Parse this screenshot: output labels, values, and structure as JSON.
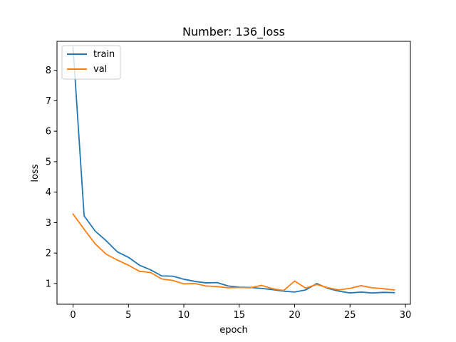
{
  "chart_data": {
    "type": "line",
    "title": "Number: 136_loss",
    "xlabel": "epoch",
    "ylabel": "loss",
    "xlim": [
      -1.45,
      30.45
    ],
    "ylim": [
      0.32,
      8.95
    ],
    "xticks": [
      0,
      5,
      10,
      15,
      20,
      25,
      30
    ],
    "yticks": [
      1,
      2,
      3,
      4,
      5,
      6,
      7,
      8
    ],
    "grid": false,
    "legend_position": "top-left",
    "x": [
      0,
      1,
      2,
      3,
      4,
      5,
      6,
      7,
      8,
      9,
      10,
      11,
      12,
      13,
      14,
      15,
      16,
      17,
      18,
      19,
      20,
      21,
      22,
      23,
      24,
      25,
      26,
      27,
      28,
      29
    ],
    "series": [
      {
        "name": "train",
        "color": "#1f77b4",
        "values": [
          8.75,
          3.22,
          2.72,
          2.4,
          2.04,
          1.86,
          1.6,
          1.45,
          1.25,
          1.24,
          1.14,
          1.07,
          1.02,
          1.03,
          0.92,
          0.88,
          0.87,
          0.84,
          0.8,
          0.75,
          0.72,
          0.79,
          1.0,
          0.84,
          0.75,
          0.69,
          0.72,
          0.69,
          0.71,
          0.7
        ]
      },
      {
        "name": "val",
        "color": "#ff7f0e",
        "values": [
          3.28,
          2.78,
          2.3,
          1.96,
          1.77,
          1.6,
          1.4,
          1.36,
          1.15,
          1.1,
          0.99,
          1.0,
          0.92,
          0.9,
          0.86,
          0.87,
          0.86,
          0.94,
          0.83,
          0.77,
          1.08,
          0.85,
          0.97,
          0.86,
          0.79,
          0.84,
          0.93,
          0.86,
          0.83,
          0.79
        ]
      }
    ]
  }
}
